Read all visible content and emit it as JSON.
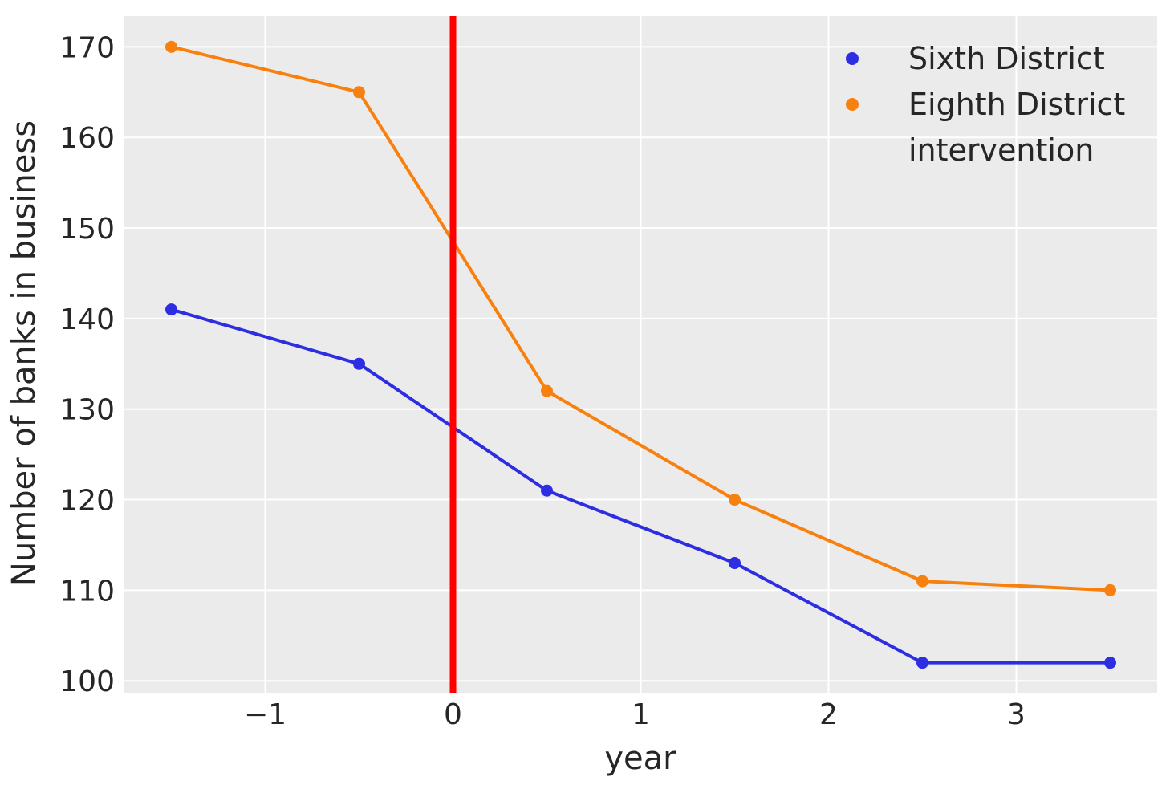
{
  "chart_data": {
    "type": "line",
    "xlabel": "year",
    "ylabel": "Number of banks in business",
    "x": [
      -1.5,
      -0.5,
      0.5,
      1.5,
      2.5,
      3.5
    ],
    "series": [
      {
        "name": "Sixth District",
        "color": "#2d2de1",
        "values": [
          141,
          135,
          121,
          113,
          102,
          102
        ]
      },
      {
        "name": "Eighth District",
        "color": "#f8800e",
        "values": [
          170,
          165,
          132,
          120,
          111,
          110
        ]
      }
    ],
    "intervention": {
      "label": "intervention",
      "x": 0,
      "color": "#ff0000"
    },
    "xticks": [
      -1,
      0,
      1,
      2,
      3
    ],
    "xtick_labels": [
      "−1",
      "0",
      "1",
      "2",
      "3"
    ],
    "yticks": [
      100,
      110,
      120,
      130,
      140,
      150,
      160,
      170
    ],
    "ytick_labels": [
      "100",
      "110",
      "120",
      "130",
      "140",
      "150",
      "160",
      "170"
    ],
    "xlim": [
      -1.75,
      3.75
    ],
    "ylim": [
      98.6,
      173.4
    ],
    "grid": true,
    "legend_position": "upper right",
    "plot_bg_color": "#ebebeb",
    "grid_color": "#ffffff",
    "text_color": "#262626"
  }
}
